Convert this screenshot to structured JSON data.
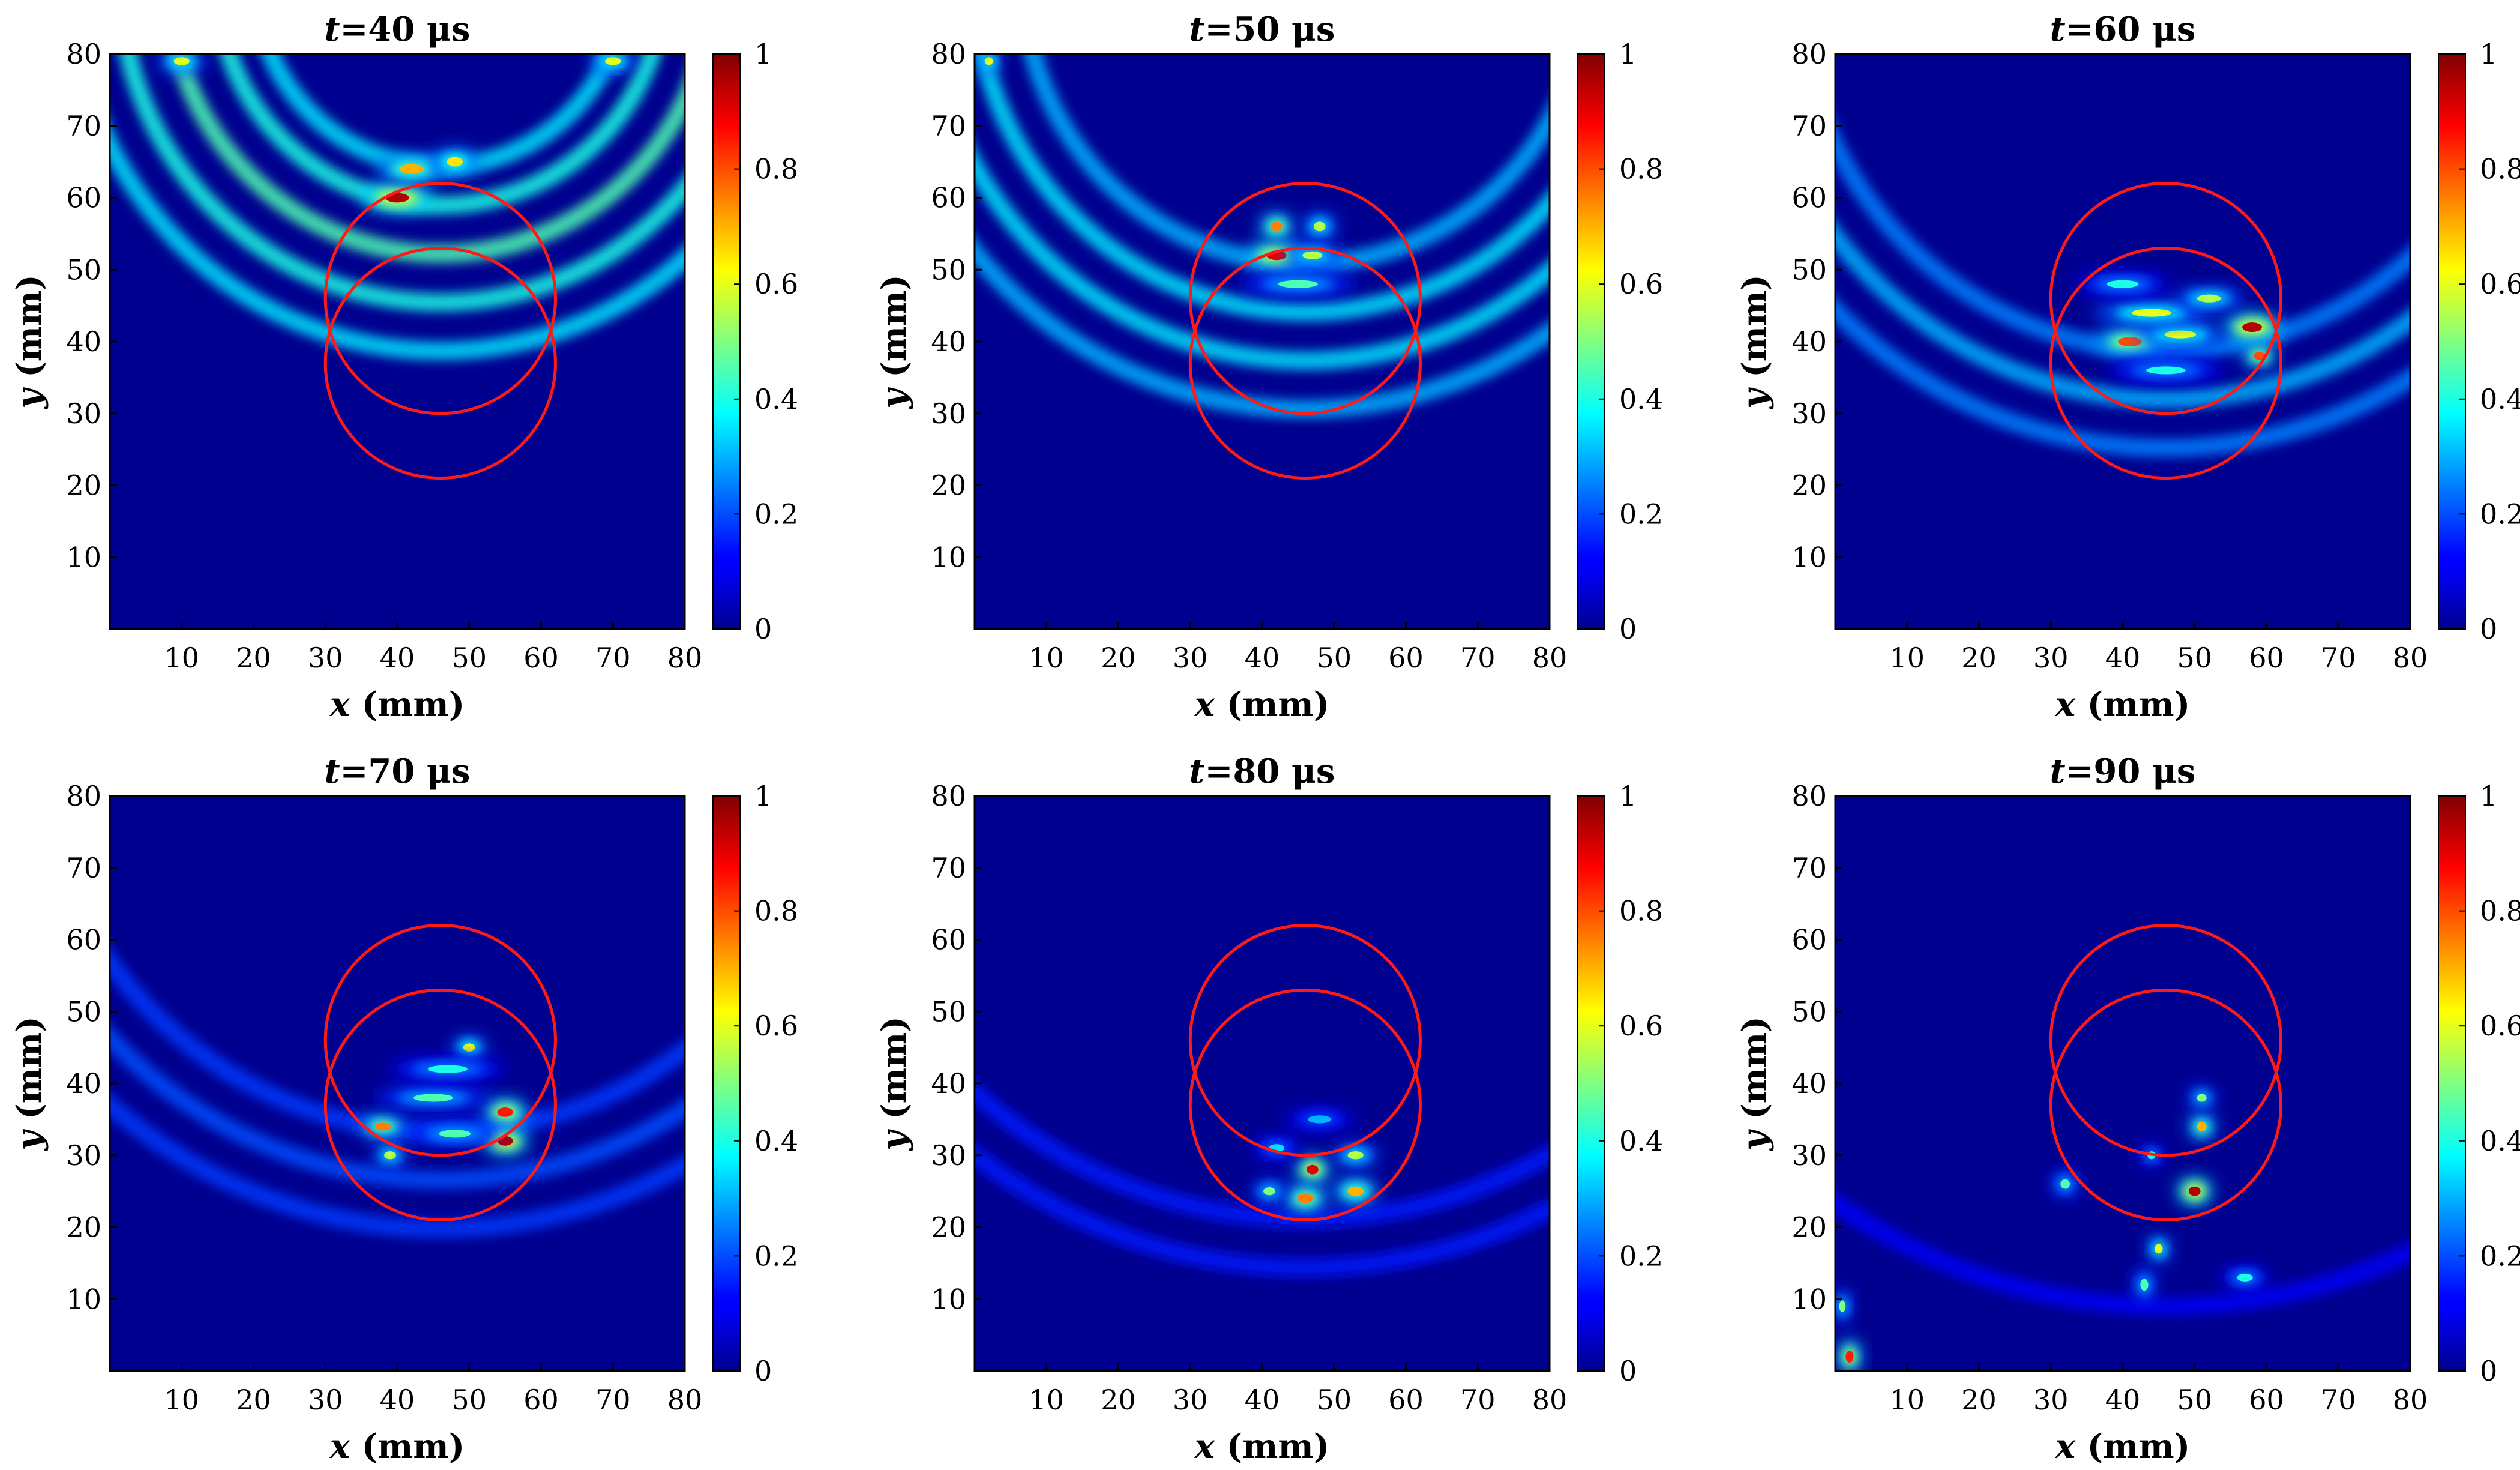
{
  "figure": {
    "colormap": "jet",
    "background_color": "#00008f",
    "circle_color": "#ff1a1a",
    "axis_label_x": "x",
    "axis_label_y": "y",
    "unit": "(mm)",
    "title_var": "t",
    "title_unit": "μs"
  },
  "chart_data": [
    {
      "type": "heatmap",
      "time": "40",
      "title": "t=40 μs",
      "xlabel": "x (mm)",
      "ylabel": "y (mm)",
      "xlim": [
        0,
        80
      ],
      "ylim": [
        0,
        80
      ],
      "xticks": [
        "10",
        "20",
        "30",
        "40",
        "50",
        "60",
        "70",
        "80"
      ],
      "yticks": [
        "10",
        "20",
        "30",
        "40",
        "50",
        "60",
        "70",
        "80"
      ],
      "colorbar": {
        "range": [
          0,
          1
        ],
        "ticks": [
          "0",
          "0.2",
          "0.4",
          "0.6",
          "0.8",
          "1"
        ]
      },
      "circles": [
        {
          "cx": 46,
          "cy": 46,
          "r": 16
        },
        {
          "cx": 46,
          "cy": 37,
          "r": 16
        }
      ],
      "fronts": [
        {
          "radius": 38,
          "amplitude": 0.35
        },
        {
          "radius": 33,
          "amplitude": 0.4
        },
        {
          "radius": 28,
          "amplitude": 0.45
        },
        {
          "radius": 23,
          "amplitude": 0.4
        },
        {
          "radius": 19,
          "amplitude": 0.35
        }
      ],
      "hotspots": [
        {
          "x": 40,
          "y": 60,
          "amplitude": 0.95,
          "w": 3.0,
          "h": 1.2
        },
        {
          "x": 42,
          "y": 64,
          "amplitude": 0.7,
          "w": 3.0,
          "h": 1.2
        },
        {
          "x": 48,
          "y": 65,
          "amplitude": 0.65,
          "w": 2.0,
          "h": 1.2
        },
        {
          "x": 10,
          "y": 79,
          "amplitude": 0.6,
          "w": 2.0,
          "h": 1.0
        },
        {
          "x": 70,
          "y": 79,
          "amplitude": 0.6,
          "w": 2.0,
          "h": 1.0
        }
      ]
    },
    {
      "type": "heatmap",
      "time": "50",
      "title": "t=50 μs",
      "xlabel": "x (mm)",
      "ylabel": "y (mm)",
      "xlim": [
        0,
        80
      ],
      "ylim": [
        0,
        80
      ],
      "xticks": [
        "10",
        "20",
        "30",
        "40",
        "50",
        "60",
        "70",
        "80"
      ],
      "yticks": [
        "10",
        "20",
        "30",
        "40",
        "50",
        "60",
        "70",
        "80"
      ],
      "colorbar": {
        "range": [
          0,
          1
        ],
        "ticks": [
          "0",
          "0.2",
          "0.4",
          "0.6",
          "0.8",
          "1"
        ]
      },
      "circles": [
        {
          "cx": 46,
          "cy": 46,
          "r": 16
        },
        {
          "cx": 46,
          "cy": 37,
          "r": 16
        }
      ],
      "fronts": [
        {
          "radius": 44,
          "amplitude": 0.3
        },
        {
          "radius": 39,
          "amplitude": 0.35
        },
        {
          "radius": 34,
          "amplitude": 0.35
        },
        {
          "radius": 29,
          "amplitude": 0.3
        }
      ],
      "hotspots": [
        {
          "x": 42,
          "y": 52,
          "amplitude": 0.9,
          "w": 2.5,
          "h": 1.2
        },
        {
          "x": 42,
          "y": 56,
          "amplitude": 0.75,
          "w": 1.5,
          "h": 1.2
        },
        {
          "x": 48,
          "y": 56,
          "amplitude": 0.55,
          "w": 1.5,
          "h": 1.2
        },
        {
          "x": 47,
          "y": 52,
          "amplitude": 0.55,
          "w": 2.5,
          "h": 1.0
        },
        {
          "x": 45,
          "y": 48,
          "amplitude": 0.45,
          "w": 5.0,
          "h": 1.0
        },
        {
          "x": 2,
          "y": 79,
          "amplitude": 0.6,
          "w": 1.0,
          "h": 1.0
        }
      ]
    },
    {
      "type": "heatmap",
      "time": "60",
      "title": "t=60 μs",
      "xlabel": "x (mm)",
      "ylabel": "y (mm)",
      "xlim": [
        0,
        80
      ],
      "ylim": [
        0,
        80
      ],
      "xticks": [
        "10",
        "20",
        "30",
        "40",
        "50",
        "60",
        "70",
        "80"
      ],
      "yticks": [
        "10",
        "20",
        "30",
        "40",
        "50",
        "60",
        "70",
        "80"
      ],
      "colorbar": {
        "range": [
          0,
          1
        ],
        "ticks": [
          "0",
          "0.2",
          "0.4",
          "0.6",
          "0.8",
          "1"
        ]
      },
      "circles": [
        {
          "cx": 46,
          "cy": 46,
          "r": 16
        },
        {
          "cx": 46,
          "cy": 37,
          "r": 16
        }
      ],
      "fronts": [
        {
          "radius": 48,
          "amplitude": 0.25
        },
        {
          "radius": 43,
          "amplitude": 0.3
        },
        {
          "radius": 38,
          "amplitude": 0.25
        }
      ],
      "hotspots": [
        {
          "x": 58,
          "y": 42,
          "amplitude": 0.95,
          "w": 2.5,
          "h": 1.2
        },
        {
          "x": 41,
          "y": 40,
          "amplitude": 0.8,
          "w": 3.0,
          "h": 1.2
        },
        {
          "x": 48,
          "y": 41,
          "amplitude": 0.6,
          "w": 4.0,
          "h": 1.0
        },
        {
          "x": 44,
          "y": 44,
          "amplitude": 0.6,
          "w": 5.0,
          "h": 1.0
        },
        {
          "x": 52,
          "y": 46,
          "amplitude": 0.55,
          "w": 3.0,
          "h": 1.0
        },
        {
          "x": 59,
          "y": 38,
          "amplitude": 0.8,
          "w": 1.5,
          "h": 1.0
        },
        {
          "x": 40,
          "y": 48,
          "amplitude": 0.4,
          "w": 4.0,
          "h": 1.0
        },
        {
          "x": 46,
          "y": 36,
          "amplitude": 0.4,
          "w": 5.0,
          "h": 1.0
        }
      ]
    },
    {
      "type": "heatmap",
      "time": "70",
      "title": "t=70 μs",
      "xlabel": "x (mm)",
      "ylabel": "y (mm)",
      "xlim": [
        0,
        80
      ],
      "ylim": [
        0,
        80
      ],
      "xticks": [
        "10",
        "20",
        "30",
        "40",
        "50",
        "60",
        "70",
        "80"
      ],
      "yticks": [
        "10",
        "20",
        "30",
        "40",
        "50",
        "60",
        "70",
        "80"
      ],
      "colorbar": {
        "range": [
          0,
          1
        ],
        "ticks": [
          "0",
          "0.2",
          "0.4",
          "0.6",
          "0.8",
          "1"
        ]
      },
      "circles": [
        {
          "cx": 46,
          "cy": 46,
          "r": 16
        },
        {
          "cx": 46,
          "cy": 37,
          "r": 16
        }
      ],
      "fronts": [
        {
          "radius": 52,
          "amplitude": 0.18
        },
        {
          "radius": 47,
          "amplitude": 0.2
        },
        {
          "radius": 42,
          "amplitude": 0.18
        }
      ],
      "hotspots": [
        {
          "x": 55,
          "y": 32,
          "amplitude": 0.95,
          "w": 2.0,
          "h": 1.2
        },
        {
          "x": 55,
          "y": 36,
          "amplitude": 0.85,
          "w": 2.0,
          "h": 1.2
        },
        {
          "x": 38,
          "y": 34,
          "amplitude": 0.75,
          "w": 2.0,
          "h": 1.0
        },
        {
          "x": 50,
          "y": 45,
          "amplitude": 0.6,
          "w": 1.5,
          "h": 1.0
        },
        {
          "x": 39,
          "y": 30,
          "amplitude": 0.55,
          "w": 1.5,
          "h": 1.0
        },
        {
          "x": 45,
          "y": 38,
          "amplitude": 0.45,
          "w": 5.0,
          "h": 1.0
        },
        {
          "x": 47,
          "y": 42,
          "amplitude": 0.4,
          "w": 5.0,
          "h": 1.0
        },
        {
          "x": 48,
          "y": 33,
          "amplitude": 0.45,
          "w": 4.0,
          "h": 1.0
        }
      ]
    },
    {
      "type": "heatmap",
      "time": "80",
      "title": "t=80 μs",
      "xlabel": "x (mm)",
      "ylabel": "y (mm)",
      "xlim": [
        0,
        80
      ],
      "ylim": [
        0,
        80
      ],
      "xticks": [
        "10",
        "20",
        "30",
        "40",
        "50",
        "60",
        "70",
        "80"
      ],
      "yticks": [
        "10",
        "20",
        "30",
        "40",
        "50",
        "60",
        "70",
        "80"
      ],
      "colorbar": {
        "range": [
          0,
          1
        ],
        "ticks": [
          "0",
          "0.2",
          "0.4",
          "0.6",
          "0.8",
          "1"
        ]
      },
      "circles": [
        {
          "cx": 46,
          "cy": 46,
          "r": 16
        },
        {
          "cx": 46,
          "cy": 37,
          "r": 16
        }
      ],
      "fronts": [
        {
          "radius": 56,
          "amplitude": 0.15
        },
        {
          "radius": 51,
          "amplitude": 0.15
        }
      ],
      "hotspots": [
        {
          "x": 47,
          "y": 28,
          "amplitude": 0.9,
          "w": 1.5,
          "h": 1.2
        },
        {
          "x": 46,
          "y": 24,
          "amplitude": 0.75,
          "w": 2.0,
          "h": 1.2
        },
        {
          "x": 53,
          "y": 25,
          "amplitude": 0.7,
          "w": 2.0,
          "h": 1.2
        },
        {
          "x": 41,
          "y": 25,
          "amplitude": 0.5,
          "w": 1.5,
          "h": 1.0
        },
        {
          "x": 53,
          "y": 30,
          "amplitude": 0.55,
          "w": 2.0,
          "h": 1.0
        },
        {
          "x": 42,
          "y": 31,
          "amplitude": 0.35,
          "w": 2.0,
          "h": 1.0
        },
        {
          "x": 48,
          "y": 35,
          "amplitude": 0.3,
          "w": 3.0,
          "h": 1.0
        }
      ]
    },
    {
      "type": "heatmap",
      "time": "90",
      "title": "t=90 μs",
      "xlabel": "x (mm)",
      "ylabel": "y (mm)",
      "xlim": [
        0,
        80
      ],
      "ylim": [
        0,
        80
      ],
      "xticks": [
        "10",
        "20",
        "30",
        "40",
        "50",
        "60",
        "70",
        "80"
      ],
      "yticks": [
        "10",
        "20",
        "30",
        "40",
        "50",
        "60",
        "70",
        "80"
      ],
      "colorbar": {
        "range": [
          0,
          1
        ],
        "ticks": [
          "0",
          "0.2",
          "0.4",
          "0.6",
          "0.8",
          "1"
        ]
      },
      "circles": [
        {
          "cx": 46,
          "cy": 46,
          "r": 16
        },
        {
          "cx": 46,
          "cy": 37,
          "r": 16
        }
      ],
      "fronts": [
        {
          "radius": 60,
          "amplitude": 0.12
        }
      ],
      "hotspots": [
        {
          "x": 50,
          "y": 25,
          "amplitude": 0.95,
          "w": 1.5,
          "h": 1.2
        },
        {
          "x": 2,
          "y": 2,
          "amplitude": 0.85,
          "w": 1.0,
          "h": 1.5
        },
        {
          "x": 51,
          "y": 34,
          "amplitude": 0.7,
          "w": 1.2,
          "h": 1.2
        },
        {
          "x": 45,
          "y": 17,
          "amplitude": 0.6,
          "w": 1.0,
          "h": 1.2
        },
        {
          "x": 51,
          "y": 38,
          "amplitude": 0.5,
          "w": 1.2,
          "h": 1.0
        },
        {
          "x": 43,
          "y": 12,
          "amplitude": 0.45,
          "w": 1.0,
          "h": 1.5
        },
        {
          "x": 32,
          "y": 26,
          "amplitude": 0.45,
          "w": 1.2,
          "h": 1.2
        },
        {
          "x": 44,
          "y": 30,
          "amplitude": 0.4,
          "w": 1.0,
          "h": 1.0
        },
        {
          "x": 57,
          "y": 13,
          "amplitude": 0.4,
          "w": 2.0,
          "h": 1.0
        },
        {
          "x": 1,
          "y": 9,
          "amplitude": 0.5,
          "w": 0.8,
          "h": 1.5
        }
      ]
    }
  ]
}
